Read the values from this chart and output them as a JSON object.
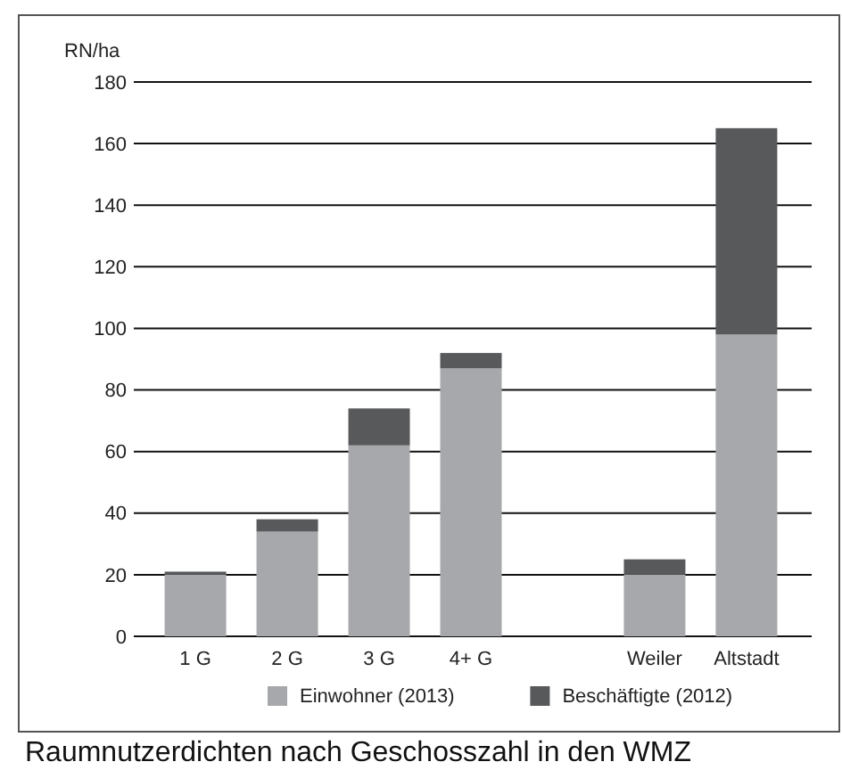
{
  "chart_data": {
    "type": "bar",
    "stacked": true,
    "ylabel": "RN/ha",
    "categories": [
      "1 G",
      "2 G",
      "3 G",
      "4+ G",
      null,
      "Weiler",
      "Altstadt"
    ],
    "series": [
      {
        "name": "Einwohner (2013)",
        "color": "#a7a8ab",
        "values": [
          20,
          34,
          62,
          87,
          null,
          20,
          98
        ]
      },
      {
        "name": "Beschäftigte (2012)",
        "color": "#58595b",
        "values": [
          1,
          4,
          12,
          5,
          null,
          5,
          67
        ]
      }
    ],
    "ylim": [
      0,
      180
    ],
    "yticks": [
      0,
      20,
      40,
      60,
      80,
      100,
      120,
      140,
      160,
      180
    ],
    "grid": "y",
    "legend": "bottom",
    "annotations": [
      "Raumnutzerdichten nach Geschosszahl in den WMZ"
    ]
  }
}
